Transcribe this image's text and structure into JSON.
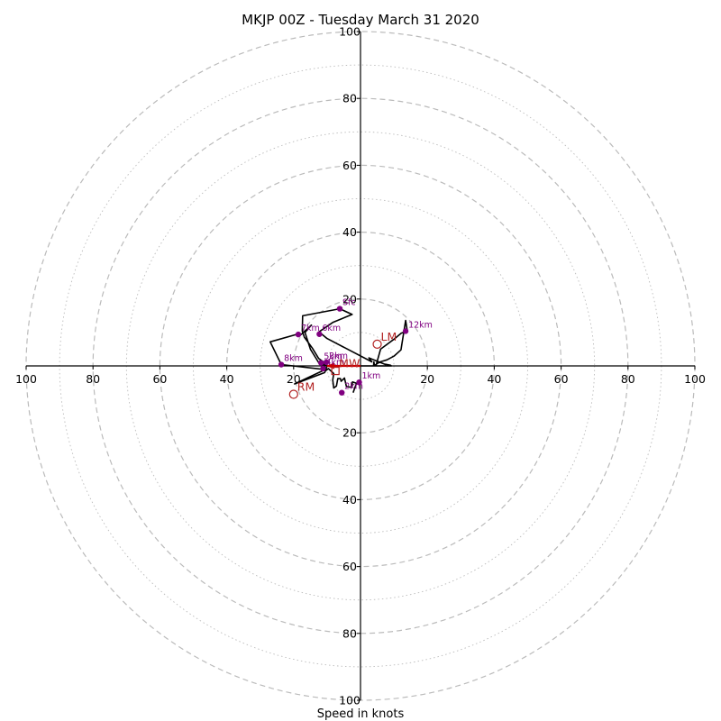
{
  "title": "MKJP 00Z - Tuesday March 31 2020",
  "chart_data": {
    "type": "scatter",
    "title": "MKJP 00Z - Tuesday March 31 2020",
    "xlabel": "Speed in knots",
    "ylabel": "",
    "units": "knots",
    "xlim": [
      -100,
      100
    ],
    "ylim": [
      -100,
      100
    ],
    "rings_major": [
      20,
      40,
      60,
      80,
      100
    ],
    "rings_minor": [
      10,
      30,
      50,
      70,
      90
    ],
    "tick_labels": [
      "20",
      "40",
      "60",
      "80",
      "100"
    ],
    "grid": true,
    "colors": {
      "trace": "#000000",
      "height_markers": "#800080",
      "motion": "#b22222",
      "shear_vector": "#cc0000",
      "grid": "#bbbbbb",
      "axes": "#000000"
    },
    "hodograph_trace": [
      [
        -2.2,
        -8.0
      ],
      [
        -1.2,
        -5.2
      ],
      [
        -2.4,
        -4.8
      ],
      [
        -2.6,
        -6.4
      ],
      [
        -4.2,
        -6.2
      ],
      [
        -4.8,
        -3.6
      ],
      [
        -5.8,
        -4.6
      ],
      [
        -6.0,
        -3.8
      ],
      [
        -6.8,
        -3.8
      ],
      [
        -7.2,
        -6.0
      ],
      [
        -8.0,
        -6.6
      ],
      [
        -8.3,
        -4.2
      ],
      [
        -8.0,
        -2.3
      ],
      [
        -9.6,
        -0.8
      ],
      [
        -10.6,
        -1.6
      ],
      [
        -10.3,
        -0.8
      ],
      [
        -11.0,
        0.0
      ],
      [
        -11.8,
        0.9
      ],
      [
        -12.4,
        0.8
      ],
      [
        -15.0,
        5.0
      ],
      [
        -16.6,
        10.0
      ],
      [
        -14.7,
        12.2
      ],
      [
        -17.7,
        9.4
      ],
      [
        -19.2,
        9.4
      ],
      [
        -27.0,
        7.2
      ],
      [
        -23.7,
        0.4
      ],
      [
        -10.6,
        -1.1
      ],
      [
        -19.7,
        -5.4
      ],
      [
        -10.7,
        -2.0
      ],
      [
        -10.0,
        0.0
      ],
      [
        -11.0,
        0.5
      ],
      [
        -10.5,
        0.9
      ],
      [
        -10.8,
        1.0
      ],
      [
        -12.5,
        2.2
      ],
      [
        -14.4,
        5.3
      ],
      [
        -16.8,
        8.6
      ],
      [
        -17.4,
        10.4
      ],
      [
        -17.3,
        15.0
      ],
      [
        -6.2,
        17.1
      ],
      [
        -2.5,
        15.4
      ],
      [
        -8.3,
        13.0
      ],
      [
        -12.4,
        10.2
      ],
      [
        -10.0,
        8.2
      ],
      [
        3.4,
        1.2
      ],
      [
        2.5,
        2.4
      ],
      [
        7.5,
        0.4
      ],
      [
        7.5,
        0.5
      ],
      [
        9.0,
        0.2
      ],
      [
        9.2,
        0.0
      ],
      [
        4.2,
        0.0
      ],
      [
        4.0,
        1.2
      ],
      [
        3.9,
        0.0
      ],
      [
        5.9,
        1.2
      ],
      [
        7.9,
        1.8
      ],
      [
        10.1,
        3.0
      ],
      [
        12.1,
        4.8
      ],
      [
        13.5,
        13.6
      ],
      [
        14.0,
        10.4
      ],
      [
        12.2,
        9.8
      ],
      [
        9.9,
        7.9
      ],
      [
        6.0,
        5.0
      ],
      [
        4.6,
        0.0
      ],
      [
        -3.0,
        0.0
      ]
    ],
    "height_points": [
      {
        "label": "Sfc",
        "u": -6.2,
        "v": 17.1
      },
      {
        "label": "1km",
        "u": -0.4,
        "v": -4.9
      },
      {
        "label": "2km",
        "u": -5.6,
        "v": -8.0
      },
      {
        "label": "3km",
        "u": -10.2,
        "v": 1.1
      },
      {
        "label": "4km",
        "u": -11.2,
        "v": -0.8
      },
      {
        "label": "5km",
        "u": -11.8,
        "v": 0.9
      },
      {
        "label": "6km",
        "u": -12.3,
        "v": 9.5
      },
      {
        "label": "7km",
        "u": -18.6,
        "v": 9.4
      },
      {
        "label": "8km",
        "u": -23.7,
        "v": 0.4
      },
      {
        "label": "12km",
        "u": 13.5,
        "v": 10.4
      }
    ],
    "storm_motion": [
      {
        "label": "LM",
        "u": 5.0,
        "v": 6.5
      },
      {
        "label": "RM",
        "u": -20.0,
        "v": -8.5
      },
      {
        "label": "MW",
        "u": -7.5,
        "v": -1.5
      }
    ],
    "shear_vector": {
      "u": -10.0,
      "v": 0.0
    }
  }
}
